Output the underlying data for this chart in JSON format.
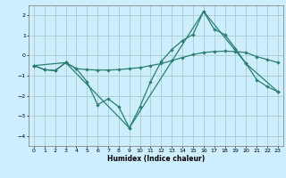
{
  "xlabel": "Humidex (Indice chaleur)",
  "background_color": "#cceeff",
  "grid_color": "#aacccc",
  "line_color": "#2a7f6f",
  "series1": [
    [
      0,
      -0.5
    ],
    [
      1,
      -0.7
    ],
    [
      2,
      -0.75
    ],
    [
      3,
      -0.35
    ],
    [
      4,
      -0.65
    ],
    [
      5,
      -1.3
    ],
    [
      6,
      -2.45
    ],
    [
      7,
      -2.15
    ],
    [
      8,
      -2.55
    ],
    [
      9,
      -3.6
    ],
    [
      10,
      -2.55
    ],
    [
      11,
      -1.3
    ],
    [
      12,
      -0.3
    ],
    [
      13,
      0.3
    ],
    [
      14,
      0.75
    ],
    [
      15,
      1.05
    ],
    [
      16,
      2.2
    ],
    [
      17,
      1.3
    ],
    [
      18,
      1.05
    ],
    [
      19,
      0.35
    ],
    [
      20,
      -0.4
    ],
    [
      21,
      -1.2
    ],
    [
      22,
      -1.55
    ],
    [
      23,
      -1.8
    ]
  ],
  "series2": [
    [
      0,
      -0.5
    ],
    [
      1,
      -0.7
    ],
    [
      2,
      -0.75
    ],
    [
      3,
      -0.35
    ],
    [
      4,
      -0.65
    ],
    [
      5,
      -0.7
    ],
    [
      6,
      -0.72
    ],
    [
      7,
      -0.72
    ],
    [
      8,
      -0.7
    ],
    [
      9,
      -0.65
    ],
    [
      10,
      -0.6
    ],
    [
      11,
      -0.5
    ],
    [
      12,
      -0.4
    ],
    [
      13,
      -0.25
    ],
    [
      14,
      -0.1
    ],
    [
      15,
      0.05
    ],
    [
      16,
      0.15
    ],
    [
      17,
      0.2
    ],
    [
      18,
      0.22
    ],
    [
      19,
      0.2
    ],
    [
      20,
      0.15
    ],
    [
      21,
      -0.05
    ],
    [
      22,
      -0.2
    ],
    [
      23,
      -0.35
    ]
  ],
  "series3": [
    [
      0,
      -0.5
    ],
    [
      3,
      -0.35
    ],
    [
      9,
      -3.6
    ],
    [
      16,
      2.2
    ],
    [
      20,
      -0.4
    ],
    [
      23,
      -1.8
    ]
  ],
  "ylim": [
    -4.5,
    2.5
  ],
  "xlim": [
    -0.5,
    23.5
  ],
  "yticks": [
    -4,
    -3,
    -2,
    -1,
    0,
    1,
    2
  ],
  "xticks": [
    0,
    1,
    2,
    3,
    4,
    5,
    6,
    7,
    8,
    9,
    10,
    11,
    12,
    13,
    14,
    15,
    16,
    17,
    18,
    19,
    20,
    21,
    22,
    23
  ]
}
